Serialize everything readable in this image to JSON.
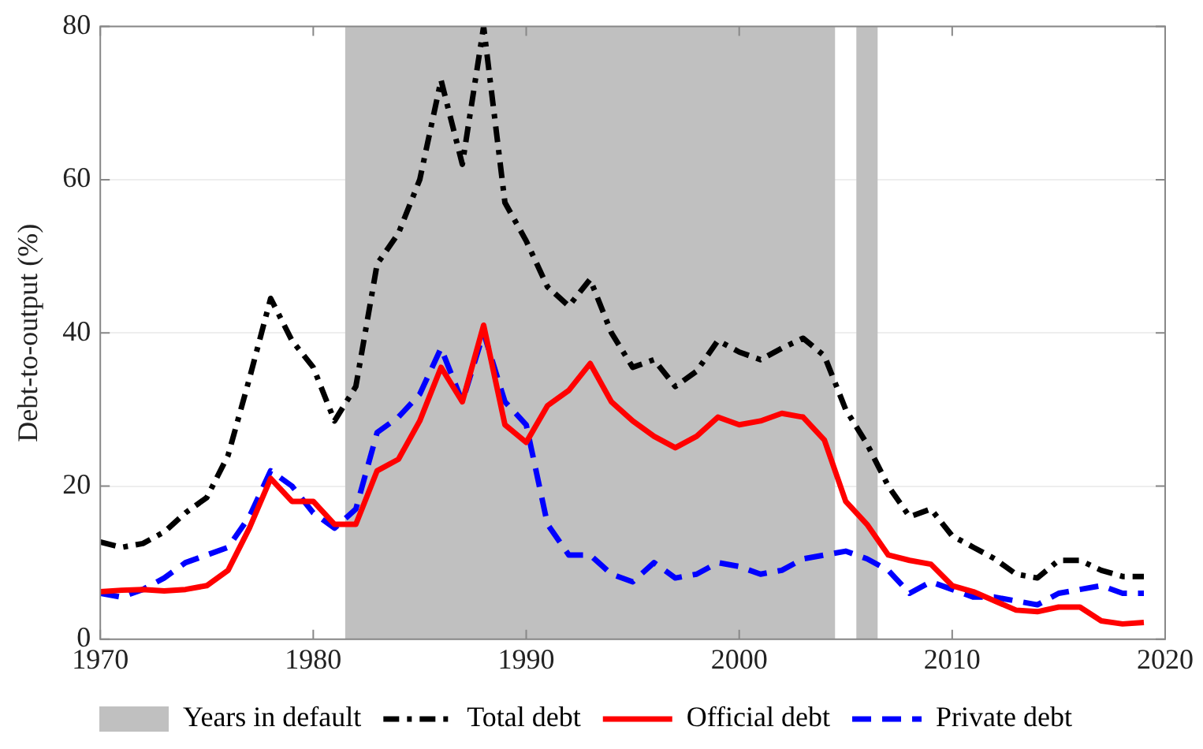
{
  "chart_data": {
    "type": "line",
    "ylabel": "Debt-to-output (%)",
    "x": [
      1970,
      1971,
      1972,
      1973,
      1974,
      1975,
      1976,
      1977,
      1978,
      1979,
      1980,
      1981,
      1982,
      1983,
      1984,
      1985,
      1986,
      1987,
      1988,
      1989,
      1990,
      1991,
      1992,
      1993,
      1994,
      1995,
      1996,
      1997,
      1998,
      1999,
      2000,
      2001,
      2002,
      2003,
      2004,
      2005,
      2006,
      2007,
      2008,
      2009,
      2010,
      2011,
      2012,
      2013,
      2014,
      2015,
      2016,
      2017,
      2018,
      2019
    ],
    "xlim": [
      1970,
      2020
    ],
    "xticks": [
      1970,
      1980,
      1990,
      2000,
      2010,
      2020
    ],
    "ylim": [
      0,
      80
    ],
    "yticks": [
      0,
      20,
      40,
      60,
      80
    ],
    "grid": "y",
    "legend": "bottom",
    "marker": "none",
    "bands": [
      {
        "axis": "x",
        "from": 1981.5,
        "to": 2004.5,
        "label": "Years in default",
        "color": "#c0c0c0"
      },
      {
        "axis": "x",
        "from": 2005.5,
        "to": 2006.5,
        "color": "#c0c0c0"
      }
    ],
    "series": [
      {
        "name": "Total debt",
        "color": "#000000",
        "line_style": "dashdot",
        "values": [
          12.7,
          12,
          12.5,
          14,
          16.5,
          18.5,
          24,
          34,
          44.5,
          39,
          35.5,
          28.5,
          33,
          49,
          53,
          60,
          73,
          62,
          80,
          57,
          52,
          46,
          43.5,
          47,
          40,
          35.5,
          36.5,
          33,
          35,
          39,
          37.5,
          36.5,
          38,
          39.3,
          37,
          30,
          25.5,
          20,
          16,
          17,
          13.5,
          12,
          10.5,
          8.5,
          8,
          10.3,
          10.3,
          9,
          8.2,
          8.2
        ]
      },
      {
        "name": "Official debt",
        "color": "#ff0000",
        "line_style": "solid",
        "values": [
          6.2,
          6.4,
          6.5,
          6.3,
          6.5,
          7,
          9,
          14.5,
          21,
          18,
          18,
          15,
          15,
          22,
          23.5,
          28.5,
          35.5,
          31,
          41,
          28,
          25.7,
          30.5,
          32.5,
          36,
          31,
          28.5,
          26.5,
          25,
          26.5,
          29,
          28,
          28.5,
          29.5,
          29,
          26,
          18,
          15,
          11,
          10.3,
          9.8,
          7,
          6.2,
          5,
          3.8,
          3.6,
          4.2,
          4.2,
          2.4,
          2,
          2.2
        ]
      },
      {
        "name": "Private debt",
        "color": "#0000ff",
        "line_style": "dashed",
        "values": [
          6,
          5.5,
          6.5,
          8,
          10,
          11,
          12,
          16,
          22,
          20,
          16.5,
          14.5,
          17,
          27,
          29,
          32,
          38,
          31,
          40,
          31,
          28,
          15,
          11,
          11,
          8.5,
          7.5,
          10,
          8,
          8.5,
          10,
          9.5,
          8.5,
          9,
          10.5,
          11,
          11.5,
          10.5,
          9,
          6,
          7.5,
          6.5,
          5.5,
          5.5,
          5,
          4.5,
          6,
          6.5,
          7,
          6,
          6
        ]
      }
    ]
  }
}
